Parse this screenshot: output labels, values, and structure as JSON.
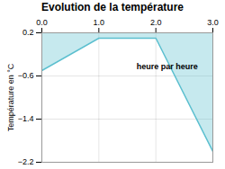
{
  "chart_data": {
    "type": "area",
    "title": "Evolution de la température",
    "ylabel": "Température en °C",
    "x": [
      0,
      1,
      2,
      3
    ],
    "values": [
      -0.5,
      0.1,
      0.1,
      -2.0
    ],
    "fill_top": 0.2,
    "color": "#5bbfcf",
    "xlim": [
      0,
      3
    ],
    "xticks": [
      0,
      1,
      2,
      3
    ],
    "ylim": [
      -2.2,
      0.2
    ],
    "yticks": [
      0.2,
      -0.6,
      -1.4,
      -2.2
    ],
    "grid": true,
    "annotations": [
      {
        "text": "heure par heure",
        "x": 2.2,
        "y": -0.42
      }
    ]
  }
}
